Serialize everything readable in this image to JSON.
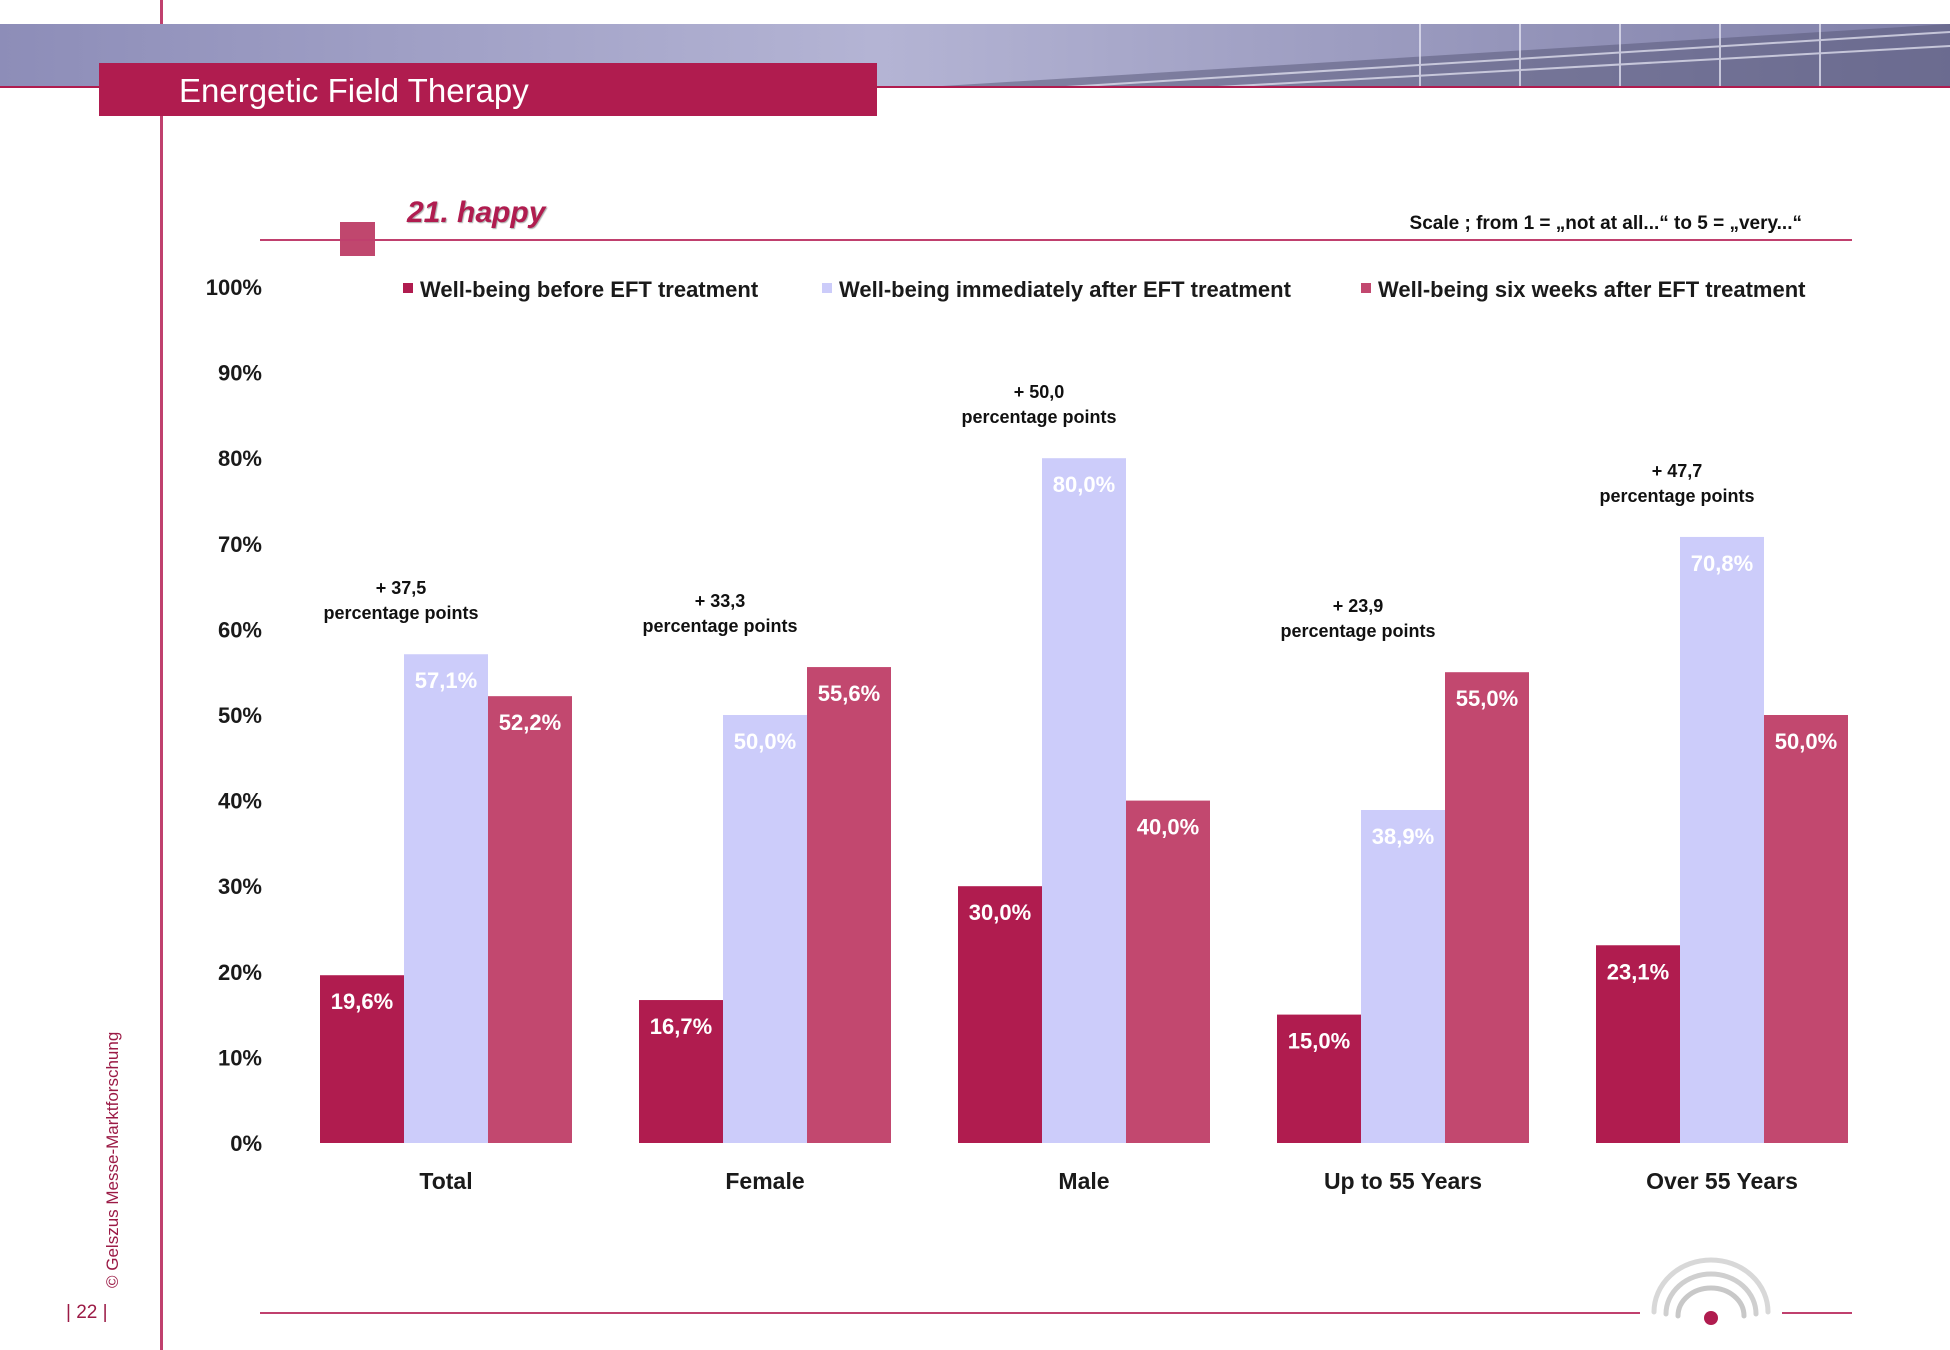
{
  "header": {
    "title": "Energetic Field Therapy"
  },
  "section": {
    "title": "21. happy",
    "scale_note": "Scale ; from 1 = „not at all...“  to 5 = „very...“"
  },
  "footer": {
    "copyright": "© Gelszus Messe-Marktforschung",
    "page_number": "| 22 |"
  },
  "colors": {
    "accent": "#b01c4f",
    "before": "#b01c4f",
    "immediately": "#ccccfa",
    "six_weeks": "#c2486f"
  },
  "chart_data": {
    "type": "bar",
    "categories": [
      "Total",
      "Female",
      "Male",
      "Up to 55 Years",
      "Over 55 Years"
    ],
    "series": [
      {
        "name": "Well-being before EFT treatment",
        "values": [
          19.6,
          16.7,
          30.0,
          15.0,
          23.1
        ],
        "labels": [
          "19,6%",
          "16,7%",
          "30,0%",
          "15,0%",
          "23,1%"
        ],
        "color": "#b01c4f"
      },
      {
        "name": "Well-being immediately after EFT treatment",
        "values": [
          57.1,
          50.0,
          80.0,
          38.9,
          70.8
        ],
        "labels": [
          "57,1%",
          "50,0%",
          "80,0%",
          "38,9%",
          "70,8%"
        ],
        "color": "#ccccfa"
      },
      {
        "name": "Well-being six weeks after EFT treatment",
        "values": [
          52.2,
          55.6,
          40.0,
          55.0,
          50.0
        ],
        "labels": [
          "52,2%",
          "55,6%",
          "40,0%",
          "55,0%",
          "50,0%"
        ],
        "color": "#c2486f"
      }
    ],
    "annotations": [
      {
        "category": "Total",
        "delta": "+ 37,5",
        "text": "percentage points"
      },
      {
        "category": "Female",
        "delta": "+ 33,3",
        "text": "percentage points"
      },
      {
        "category": "Male",
        "delta": "+ 50,0",
        "text": "percentage points"
      },
      {
        "category": "Up to 55 Years",
        "delta": "+ 23,9",
        "text": "percentage points"
      },
      {
        "category": "Over 55 Years",
        "delta": "+ 47,7",
        "text": "percentage points"
      }
    ],
    "yticks": [
      "0%",
      "10%",
      "20%",
      "30%",
      "40%",
      "50%",
      "60%",
      "70%",
      "80%",
      "90%",
      "100%"
    ],
    "ylim": [
      0,
      100
    ],
    "grid": false,
    "legend": "top"
  }
}
